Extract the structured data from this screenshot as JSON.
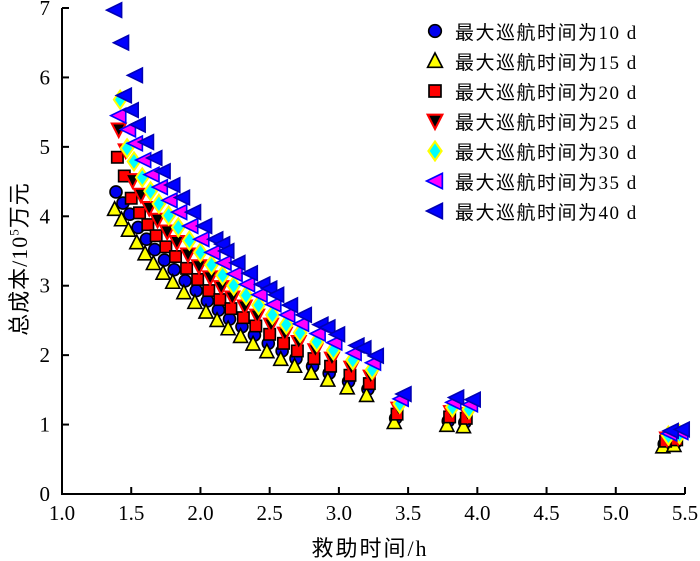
{
  "chart_data": {
    "type": "scatter",
    "title": "",
    "xlabel": "救助时间/h",
    "ylabel": {
      "prefix": "总成本/10",
      "sup": "5",
      "suffix": "万元"
    },
    "xlim": [
      1.0,
      5.5
    ],
    "ylim": [
      0,
      7
    ],
    "xtick_values": [
      1.0,
      1.5,
      2.0,
      2.5,
      3.0,
      3.5,
      4.0,
      4.5,
      5.0,
      5.5
    ],
    "xtick_labels": [
      "1.0",
      "1.5",
      "2.0",
      "2.5",
      "3.0",
      "3.5",
      "4.0",
      "4.5",
      "5.0",
      "5.5"
    ],
    "ytick_values": [
      0,
      1,
      2,
      3,
      4,
      5,
      6,
      7
    ],
    "ytick_labels": [
      "0",
      "1",
      "2",
      "3",
      "4",
      "5",
      "6",
      "7"
    ],
    "grid": false,
    "legend_position": "upper-right-inside",
    "axis_color": "#000000",
    "series": [
      {
        "name": "最大巡航时间为10 d",
        "marker": "circle",
        "fill": "#0000ee",
        "edge": "#000000",
        "points": [
          [
            1.39,
            4.35
          ],
          [
            1.44,
            4.19
          ],
          [
            1.49,
            4.03
          ],
          [
            1.55,
            3.84
          ],
          [
            1.61,
            3.67
          ],
          [
            1.67,
            3.52
          ],
          [
            1.74,
            3.37
          ],
          [
            1.81,
            3.23
          ],
          [
            1.89,
            3.07
          ],
          [
            1.97,
            2.93
          ],
          [
            2.05,
            2.78
          ],
          [
            2.13,
            2.65
          ],
          [
            2.21,
            2.52
          ],
          [
            2.3,
            2.41
          ],
          [
            2.39,
            2.29
          ],
          [
            2.49,
            2.17
          ],
          [
            2.59,
            2.06
          ],
          [
            2.69,
            1.95
          ],
          [
            2.81,
            1.84
          ],
          [
            2.93,
            1.74
          ],
          [
            3.07,
            1.62
          ],
          [
            3.21,
            1.51
          ],
          [
            3.41,
            1.09
          ],
          [
            3.79,
            1.05
          ],
          [
            3.91,
            1.03
          ],
          [
            5.35,
            0.72
          ],
          [
            5.43,
            0.74
          ]
        ]
      },
      {
        "name": "最大巡航时间为15 d",
        "marker": "triangle-up",
        "fill": "#ffff00",
        "edge": "#000000",
        "points": [
          [
            1.38,
            4.1
          ],
          [
            1.43,
            3.95
          ],
          [
            1.48,
            3.8
          ],
          [
            1.54,
            3.62
          ],
          [
            1.6,
            3.46
          ],
          [
            1.66,
            3.32
          ],
          [
            1.73,
            3.18
          ],
          [
            1.8,
            3.05
          ],
          [
            1.88,
            2.9
          ],
          [
            1.96,
            2.76
          ],
          [
            2.04,
            2.62
          ],
          [
            2.12,
            2.5
          ],
          [
            2.2,
            2.38
          ],
          [
            2.29,
            2.27
          ],
          [
            2.38,
            2.16
          ],
          [
            2.48,
            2.05
          ],
          [
            2.58,
            1.94
          ],
          [
            2.68,
            1.84
          ],
          [
            2.8,
            1.74
          ],
          [
            2.92,
            1.64
          ],
          [
            3.06,
            1.53
          ],
          [
            3.2,
            1.42
          ],
          [
            3.4,
            1.03
          ],
          [
            3.78,
            0.99
          ],
          [
            3.9,
            0.97
          ],
          [
            5.34,
            0.68
          ],
          [
            5.42,
            0.7
          ]
        ]
      },
      {
        "name": "最大巡航时间为20 d",
        "marker": "square",
        "fill": "#ff0000",
        "edge": "#000000",
        "points": [
          [
            1.4,
            4.85
          ],
          [
            1.45,
            4.58
          ],
          [
            1.5,
            4.26
          ],
          [
            1.56,
            4.05
          ],
          [
            1.62,
            3.88
          ],
          [
            1.68,
            3.72
          ],
          [
            1.75,
            3.56
          ],
          [
            1.82,
            3.42
          ],
          [
            1.9,
            3.25
          ],
          [
            1.98,
            3.09
          ],
          [
            2.06,
            2.93
          ],
          [
            2.14,
            2.8
          ],
          [
            2.22,
            2.67
          ],
          [
            2.31,
            2.54
          ],
          [
            2.4,
            2.42
          ],
          [
            2.5,
            2.3
          ],
          [
            2.6,
            2.17
          ],
          [
            2.7,
            2.06
          ],
          [
            2.82,
            1.95
          ],
          [
            2.94,
            1.84
          ],
          [
            3.08,
            1.71
          ],
          [
            3.22,
            1.59
          ],
          [
            3.42,
            1.15
          ],
          [
            3.8,
            1.11
          ],
          [
            3.92,
            1.09
          ],
          [
            5.36,
            0.76
          ],
          [
            5.44,
            0.78
          ]
        ]
      },
      {
        "name": "最大巡航时间为25 d",
        "marker": "triangle-down",
        "fill": "#000000",
        "edge": "#ff0000",
        "points": [
          [
            1.41,
            5.25
          ],
          [
            1.46,
            4.95
          ],
          [
            1.51,
            4.52
          ],
          [
            1.57,
            4.31
          ],
          [
            1.63,
            4.12
          ],
          [
            1.69,
            3.95
          ],
          [
            1.76,
            3.78
          ],
          [
            1.83,
            3.63
          ],
          [
            1.91,
            3.45
          ],
          [
            1.99,
            3.28
          ],
          [
            2.07,
            3.12
          ],
          [
            2.15,
            2.98
          ],
          [
            2.23,
            2.83
          ],
          [
            2.32,
            2.7
          ],
          [
            2.41,
            2.57
          ],
          [
            2.51,
            2.44
          ],
          [
            2.61,
            2.31
          ],
          [
            2.71,
            2.19
          ],
          [
            2.83,
            2.07
          ],
          [
            2.95,
            1.95
          ],
          [
            3.09,
            1.82
          ],
          [
            3.23,
            1.69
          ],
          [
            3.43,
            1.23
          ],
          [
            3.81,
            1.18
          ],
          [
            3.93,
            1.15
          ],
          [
            5.37,
            0.8
          ],
          [
            5.45,
            0.82
          ]
        ]
      },
      {
        "name": "最大巡航时间为30 d",
        "marker": "diamond",
        "fill": "#00ffff",
        "edge": "#ffff00",
        "points": [
          [
            1.42,
            5.68
          ],
          [
            1.47,
            4.98
          ],
          [
            1.52,
            4.79
          ],
          [
            1.58,
            4.56
          ],
          [
            1.64,
            4.36
          ],
          [
            1.7,
            4.18
          ],
          [
            1.77,
            4.01
          ],
          [
            1.84,
            3.84
          ],
          [
            1.92,
            3.65
          ],
          [
            2.0,
            3.48
          ],
          [
            2.08,
            3.3
          ],
          [
            2.16,
            3.15
          ],
          [
            2.24,
            3.0
          ],
          [
            2.33,
            2.86
          ],
          [
            2.42,
            2.72
          ],
          [
            2.52,
            2.58
          ],
          [
            2.62,
            2.44
          ],
          [
            2.72,
            2.32
          ],
          [
            2.84,
            2.19
          ],
          [
            2.96,
            2.07
          ],
          [
            3.1,
            1.93
          ],
          [
            3.24,
            1.79
          ],
          [
            3.44,
            1.3
          ],
          [
            3.82,
            1.25
          ],
          [
            3.94,
            1.22
          ],
          [
            5.38,
            0.84
          ],
          [
            5.46,
            0.86
          ]
        ]
      },
      {
        "name": "最大巡航时间为35 d",
        "marker": "triangle-left",
        "fill": "#ff00ff",
        "edge": "#0000ff",
        "points": [
          [
            1.41,
            5.45
          ],
          [
            1.48,
            5.25
          ],
          [
            1.53,
            5.05
          ],
          [
            1.59,
            4.81
          ],
          [
            1.65,
            4.6
          ],
          [
            1.71,
            4.42
          ],
          [
            1.78,
            4.23
          ],
          [
            1.85,
            4.06
          ],
          [
            1.93,
            3.86
          ],
          [
            2.01,
            3.67
          ],
          [
            2.09,
            3.48
          ],
          [
            2.17,
            3.33
          ],
          [
            2.25,
            3.17
          ],
          [
            2.34,
            3.02
          ],
          [
            2.43,
            2.87
          ],
          [
            2.53,
            2.73
          ],
          [
            2.63,
            2.58
          ],
          [
            2.73,
            2.45
          ],
          [
            2.85,
            2.31
          ],
          [
            2.97,
            2.18
          ],
          [
            3.11,
            2.03
          ],
          [
            3.25,
            1.89
          ],
          [
            3.45,
            1.37
          ],
          [
            3.83,
            1.32
          ],
          [
            3.95,
            1.29
          ],
          [
            5.39,
            0.87
          ],
          [
            5.47,
            0.89
          ]
        ]
      },
      {
        "name": "最大巡航时间为40 d",
        "marker": "triangle-left",
        "fill": "#0000ff",
        "edge": "#0000b4",
        "points": [
          [
            1.38,
            6.97
          ],
          [
            1.43,
            6.5
          ],
          [
            1.53,
            6.03
          ],
          [
            1.45,
            5.74
          ],
          [
            1.5,
            5.53
          ],
          [
            1.55,
            5.32
          ],
          [
            1.61,
            5.07
          ],
          [
            1.67,
            4.84
          ],
          [
            1.73,
            4.65
          ],
          [
            1.8,
            4.45
          ],
          [
            1.87,
            4.27
          ],
          [
            1.95,
            4.06
          ],
          [
            2.03,
            3.86
          ],
          [
            2.11,
            3.67
          ],
          [
            2.16,
            3.6
          ],
          [
            2.19,
            3.5
          ],
          [
            2.27,
            3.33
          ],
          [
            2.36,
            3.18
          ],
          [
            2.45,
            3.02
          ],
          [
            2.5,
            2.96
          ],
          [
            2.55,
            2.87
          ],
          [
            2.65,
            2.72
          ],
          [
            2.75,
            2.58
          ],
          [
            2.87,
            2.44
          ],
          [
            2.92,
            2.4
          ],
          [
            2.99,
            2.3
          ],
          [
            3.13,
            2.14
          ],
          [
            3.18,
            2.1
          ],
          [
            3.27,
            1.99
          ],
          [
            3.47,
            1.44
          ],
          [
            3.85,
            1.39
          ],
          [
            3.97,
            1.36
          ],
          [
            5.4,
            0.91
          ],
          [
            5.48,
            0.93
          ]
        ]
      }
    ]
  }
}
